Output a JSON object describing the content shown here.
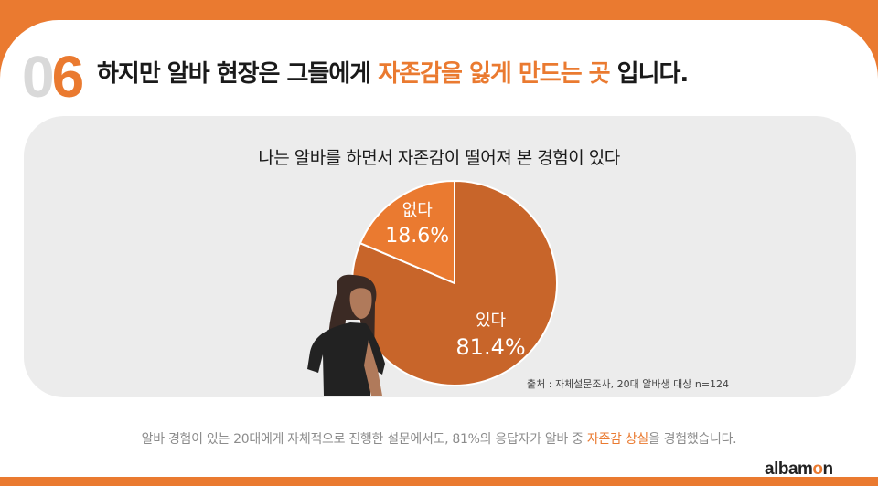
{
  "header": {
    "number_0": "0",
    "number_6": "6",
    "title_prefix": "하지만 알바 현장은 그들에게 ",
    "title_highlight": "자존감을 잃게 만드는 곳",
    "title_suffix": " 입니다."
  },
  "chart_data": {
    "type": "pie",
    "title": "나는 알바를 하면서 자존감이 떨어져 본 경험이 있다",
    "slices": [
      {
        "label": "있다",
        "value": 81.4,
        "value_label": "81.4%",
        "color": "#c8652a"
      },
      {
        "label": "없다",
        "value": 18.6,
        "value_label": "18.6%",
        "color": "#ea7a30"
      }
    ],
    "source": "출처 : 자체설문조사, 20대 알바생 대상 n=124"
  },
  "footnote": {
    "prefix": "알바 경험이 있는 20대에게 자체적으로 진행한 설문에서도, 81%의 응답자가 알바 중 ",
    "highlight": "자존감 상실",
    "suffix": "을 경험했습니다."
  },
  "logo": {
    "part1": "albam",
    "o": "o",
    "part2": "n"
  },
  "colors": {
    "accent": "#ea7a30",
    "pie_dark": "#c8652a",
    "panel": "#ececec"
  }
}
